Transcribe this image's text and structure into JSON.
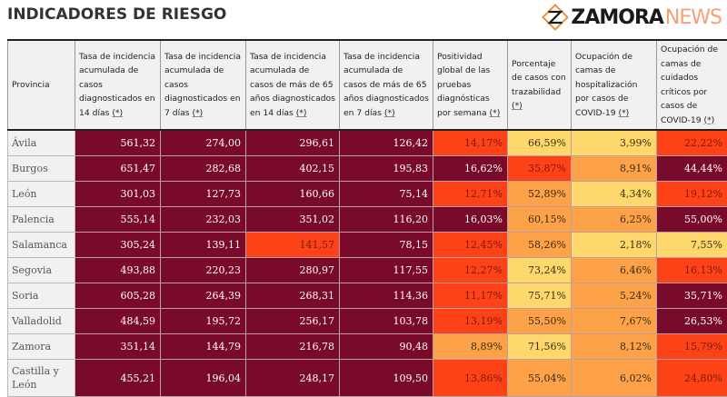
{
  "page": {
    "title": "INDICADORES DE RIESGO"
  },
  "table": {
    "headers": [
      {
        "text": "Provincia",
        "note": ""
      },
      {
        "text": "Tasa de incidencia acumulada de casos diagnosticados en 14 días",
        "note": "(*)"
      },
      {
        "text": "Tasa de incidencia acumulada de casos diagnosticados en 7 días",
        "note": "(*)"
      },
      {
        "text": "Tasa de incidencia acumulada de casos de más de 65 años diagnosticados en 14 días",
        "note": "(*)"
      },
      {
        "text": "Tasa de incidencia acumulada de casos de más de 65 años diagnosticados en 7 días",
        "note": "(*)"
      },
      {
        "text": "Positividad global de las pruebas diagnósticas por semana",
        "note": "(*)"
      },
      {
        "text": "Porcentaje de casos con trazabilidad",
        "note": "(*)"
      },
      {
        "text": "Ocupación de camas de hospitalización por casos de COVID-19",
        "note": "(*)"
      },
      {
        "text": "Ocupación de camas de cuidados críticos por casos de COVID-19",
        "note": "(*)"
      }
    ],
    "risk_colors": {
      "very_high": "#7a0a2a",
      "high": "#fe4217",
      "medium": "#fea24a",
      "low": "#fed86c"
    },
    "rows": [
      {
        "provincia": "Ávila",
        "cells": [
          {
            "value": "561,32",
            "level": "very_high"
          },
          {
            "value": "274,00",
            "level": "very_high"
          },
          {
            "value": "296,61",
            "level": "very_high"
          },
          {
            "value": "126,42",
            "level": "very_high"
          },
          {
            "value": "14,17%",
            "level": "high"
          },
          {
            "value": "66,59%",
            "level": "low"
          },
          {
            "value": "3,99%",
            "level": "low"
          },
          {
            "value": "22,22%",
            "level": "high"
          }
        ]
      },
      {
        "provincia": "Burgos",
        "cells": [
          {
            "value": "651,47",
            "level": "very_high"
          },
          {
            "value": "282,68",
            "level": "very_high"
          },
          {
            "value": "402,15",
            "level": "very_high"
          },
          {
            "value": "195,83",
            "level": "very_high"
          },
          {
            "value": "16,62%",
            "level": "very_high"
          },
          {
            "value": "35,87%",
            "level": "high"
          },
          {
            "value": "8,91%",
            "level": "medium"
          },
          {
            "value": "44,44%",
            "level": "very_high"
          }
        ]
      },
      {
        "provincia": "León",
        "cells": [
          {
            "value": "301,03",
            "level": "very_high"
          },
          {
            "value": "127,73",
            "level": "very_high"
          },
          {
            "value": "160,66",
            "level": "very_high"
          },
          {
            "value": "75,14",
            "level": "very_high"
          },
          {
            "value": "12,71%",
            "level": "high"
          },
          {
            "value": "52,89%",
            "level": "medium"
          },
          {
            "value": "4,34%",
            "level": "low"
          },
          {
            "value": "19,12%",
            "level": "high"
          }
        ]
      },
      {
        "provincia": "Palencia",
        "cells": [
          {
            "value": "555,14",
            "level": "very_high"
          },
          {
            "value": "232,03",
            "level": "very_high"
          },
          {
            "value": "351,02",
            "level": "very_high"
          },
          {
            "value": "116,20",
            "level": "very_high"
          },
          {
            "value": "16,03%",
            "level": "very_high"
          },
          {
            "value": "60,15%",
            "level": "medium"
          },
          {
            "value": "6,25%",
            "level": "medium"
          },
          {
            "value": "55,00%",
            "level": "very_high"
          }
        ]
      },
      {
        "provincia": "Salamanca",
        "cells": [
          {
            "value": "305,24",
            "level": "very_high"
          },
          {
            "value": "139,11",
            "level": "very_high"
          },
          {
            "value": "141,57",
            "level": "high"
          },
          {
            "value": "78,15",
            "level": "very_high"
          },
          {
            "value": "12,45%",
            "level": "high"
          },
          {
            "value": "58,26%",
            "level": "medium"
          },
          {
            "value": "2,18%",
            "level": "low"
          },
          {
            "value": "7,55%",
            "level": "low"
          }
        ]
      },
      {
        "provincia": "Segovia",
        "cells": [
          {
            "value": "493,88",
            "level": "very_high"
          },
          {
            "value": "220,23",
            "level": "very_high"
          },
          {
            "value": "280,97",
            "level": "very_high"
          },
          {
            "value": "117,55",
            "level": "very_high"
          },
          {
            "value": "12,27%",
            "level": "high"
          },
          {
            "value": "73,24%",
            "level": "low"
          },
          {
            "value": "6,46%",
            "level": "medium"
          },
          {
            "value": "16,13%",
            "level": "high"
          }
        ]
      },
      {
        "provincia": "Soria",
        "cells": [
          {
            "value": "605,28",
            "level": "very_high"
          },
          {
            "value": "264,39",
            "level": "very_high"
          },
          {
            "value": "268,31",
            "level": "very_high"
          },
          {
            "value": "114,36",
            "level": "very_high"
          },
          {
            "value": "11,17%",
            "level": "high"
          },
          {
            "value": "75,71%",
            "level": "low"
          },
          {
            "value": "5,24%",
            "level": "medium"
          },
          {
            "value": "35,71%",
            "level": "very_high"
          }
        ]
      },
      {
        "provincia": "Valladolid",
        "cells": [
          {
            "value": "484,59",
            "level": "very_high"
          },
          {
            "value": "195,72",
            "level": "very_high"
          },
          {
            "value": "256,17",
            "level": "very_high"
          },
          {
            "value": "103,78",
            "level": "very_high"
          },
          {
            "value": "13,19%",
            "level": "high"
          },
          {
            "value": "55,50%",
            "level": "medium"
          },
          {
            "value": "7,67%",
            "level": "medium"
          },
          {
            "value": "26,53%",
            "level": "very_high"
          }
        ]
      },
      {
        "provincia": "Zamora",
        "cells": [
          {
            "value": "351,14",
            "level": "very_high"
          },
          {
            "value": "144,79",
            "level": "very_high"
          },
          {
            "value": "216,78",
            "level": "very_high"
          },
          {
            "value": "90,48",
            "level": "very_high"
          },
          {
            "value": "8,89%",
            "level": "medium"
          },
          {
            "value": "71,56%",
            "level": "low"
          },
          {
            "value": "8,12%",
            "level": "medium"
          },
          {
            "value": "15,79%",
            "level": "high"
          }
        ]
      },
      {
        "provincia": "Castilla y León",
        "cells": [
          {
            "value": "455,21",
            "level": "very_high"
          },
          {
            "value": "196,04",
            "level": "very_high"
          },
          {
            "value": "248,17",
            "level": "very_high"
          },
          {
            "value": "109,50",
            "level": "very_high"
          },
          {
            "value": "13,86%",
            "level": "high"
          },
          {
            "value": "55,04%",
            "level": "medium"
          },
          {
            "value": "6,02%",
            "level": "medium"
          },
          {
            "value": "24,80%",
            "level": "high"
          }
        ]
      }
    ]
  },
  "watermark": {
    "brand": "ZAMORA",
    "suffix": "NEWS"
  }
}
